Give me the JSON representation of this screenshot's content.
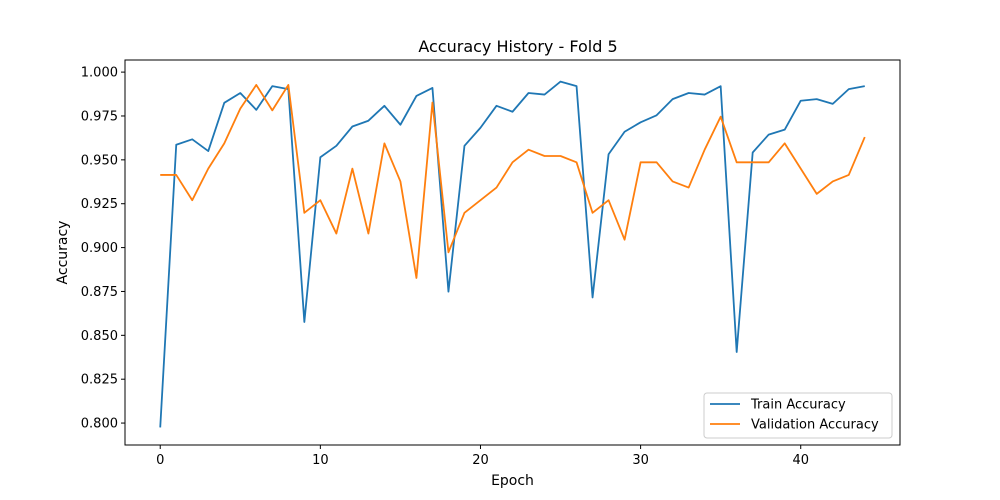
{
  "chart_data": {
    "type": "line",
    "title": "Accuracy History - Fold 5",
    "xlabel": "Epoch",
    "ylabel": "Accuracy",
    "xlim": [
      -2.2,
      46.2
    ],
    "ylim": [
      0.7875,
      1.0069
    ],
    "xticks": [
      0,
      10,
      20,
      30,
      40
    ],
    "yticks": [
      0.8,
      0.825,
      0.85,
      0.875,
      0.9,
      0.925,
      0.95,
      0.975,
      1.0
    ],
    "ytick_labels": [
      "0.800",
      "0.825",
      "0.850",
      "0.875",
      "0.900",
      "0.925",
      "0.950",
      "0.975",
      "1.000"
    ],
    "grid": false,
    "legend_position": "lower-right",
    "x": [
      0,
      1,
      2,
      3,
      4,
      5,
      6,
      7,
      8,
      9,
      10,
      11,
      12,
      13,
      14,
      15,
      16,
      17,
      18,
      19,
      20,
      21,
      22,
      23,
      24,
      25,
      26,
      27,
      28,
      29,
      30,
      31,
      32,
      33,
      34,
      35,
      36,
      37,
      38,
      39,
      40,
      41,
      42,
      43,
      44
    ],
    "series": [
      {
        "name": "Train Accuracy",
        "color": "#1f77b4",
        "values": [
          0.7975,
          0.9586,
          0.9617,
          0.955,
          0.9825,
          0.9881,
          0.9785,
          0.992,
          0.9903,
          0.8576,
          0.9515,
          0.958,
          0.969,
          0.9723,
          0.9808,
          0.97,
          0.9864,
          0.991,
          0.8749,
          0.958,
          0.9683,
          0.9808,
          0.9774,
          0.9881,
          0.9872,
          0.9946,
          0.992,
          0.8716,
          0.9532,
          0.966,
          0.9714,
          0.9754,
          0.9846,
          0.9881,
          0.9872,
          0.992,
          0.8405,
          0.9542,
          0.9644,
          0.9672,
          0.9837,
          0.9846,
          0.9819,
          0.9903,
          0.992
        ]
      },
      {
        "name": "Validation Accuracy",
        "color": "#ff7f0e",
        "values": [
          0.9414,
          0.9414,
          0.927,
          0.945,
          0.9594,
          0.9792,
          0.9927,
          0.9782,
          0.9927,
          0.9198,
          0.927,
          0.908,
          0.945,
          0.908,
          0.9594,
          0.9377,
          0.8827,
          0.9827,
          0.8973,
          0.9198,
          0.927,
          0.9342,
          0.9486,
          0.9558,
          0.9522,
          0.9522,
          0.9486,
          0.9198,
          0.927,
          0.9045,
          0.9486,
          0.9486,
          0.9377,
          0.9342,
          0.9558,
          0.9746,
          0.9486,
          0.9486,
          0.9486,
          0.9594,
          0.945,
          0.9306,
          0.9377,
          0.9414,
          0.963
        ]
      }
    ]
  }
}
